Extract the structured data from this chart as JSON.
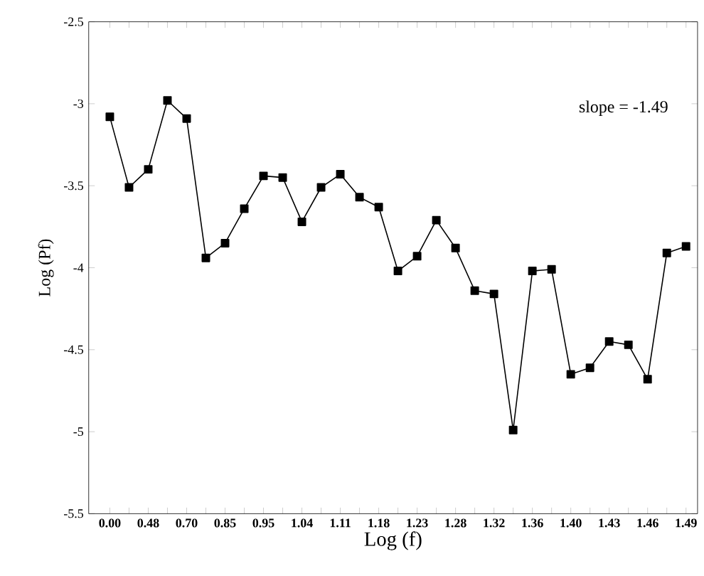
{
  "chart_data": {
    "type": "line",
    "xlabel": "Log (f)",
    "ylabel": "Log (Pf)",
    "categories": [
      "0.00",
      null,
      "0.48",
      null,
      "0.70",
      null,
      "0.85",
      null,
      "0.95",
      null,
      "1.04",
      null,
      "1.11",
      null,
      "1.18",
      null,
      "1.23",
      null,
      "1.28",
      null,
      "1.32",
      null,
      "1.36",
      null,
      "1.40",
      null,
      "1.43",
      null,
      "1.46",
      null,
      "1.49"
    ],
    "values": [
      -3.08,
      -3.51,
      -3.4,
      -2.98,
      -3.09,
      -3.94,
      -3.85,
      -3.64,
      -3.44,
      -3.45,
      -3.72,
      -3.51,
      -3.43,
      -3.57,
      -3.63,
      -4.02,
      -3.93,
      -3.71,
      -3.88,
      -4.14,
      -4.16,
      -4.99,
      -4.02,
      -4.01,
      -4.65,
      -4.61,
      -4.45,
      -4.47,
      -4.68,
      -3.91,
      -3.87
    ],
    "color": "#000000",
    "marker": "square",
    "line_style": "solid",
    "ylim": [
      -5.5,
      -2.5
    ],
    "yticks": [
      -2.5,
      -3,
      -3.5,
      -4,
      -4.5,
      -5,
      -5.5
    ],
    "annotations": [
      "slope = -1.49"
    ]
  }
}
